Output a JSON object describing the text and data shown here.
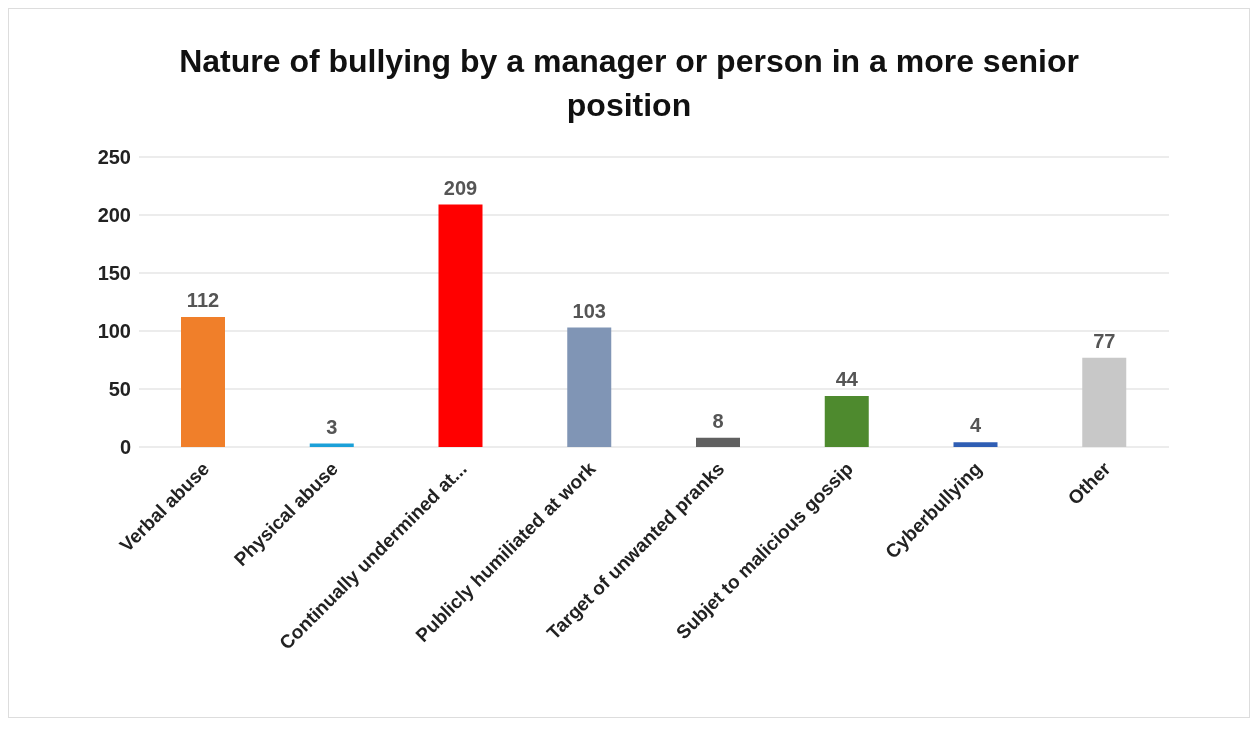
{
  "chart_data": {
    "type": "bar",
    "title": "Nature of bullying by a manager or person in a more senior position",
    "categories": [
      "Verbal abuse",
      "Physical abuse",
      "Continually undermined at...",
      "Publicly humiliated at work",
      "Target of unwanted pranks",
      "Subjet to malicious gossip",
      "Cyberbullying",
      "Other"
    ],
    "values": [
      112,
      3,
      209,
      103,
      8,
      44,
      4,
      77
    ],
    "colors": [
      "#f07f2a",
      "#1ba0d8",
      "#ff0000",
      "#8095b5",
      "#606060",
      "#4e8a2e",
      "#2f5eb4",
      "#c8c8c8"
    ],
    "ylim": [
      0,
      250
    ],
    "yticks": [
      0,
      50,
      100,
      150,
      200,
      250
    ],
    "grid": "y",
    "data_labels": true
  }
}
